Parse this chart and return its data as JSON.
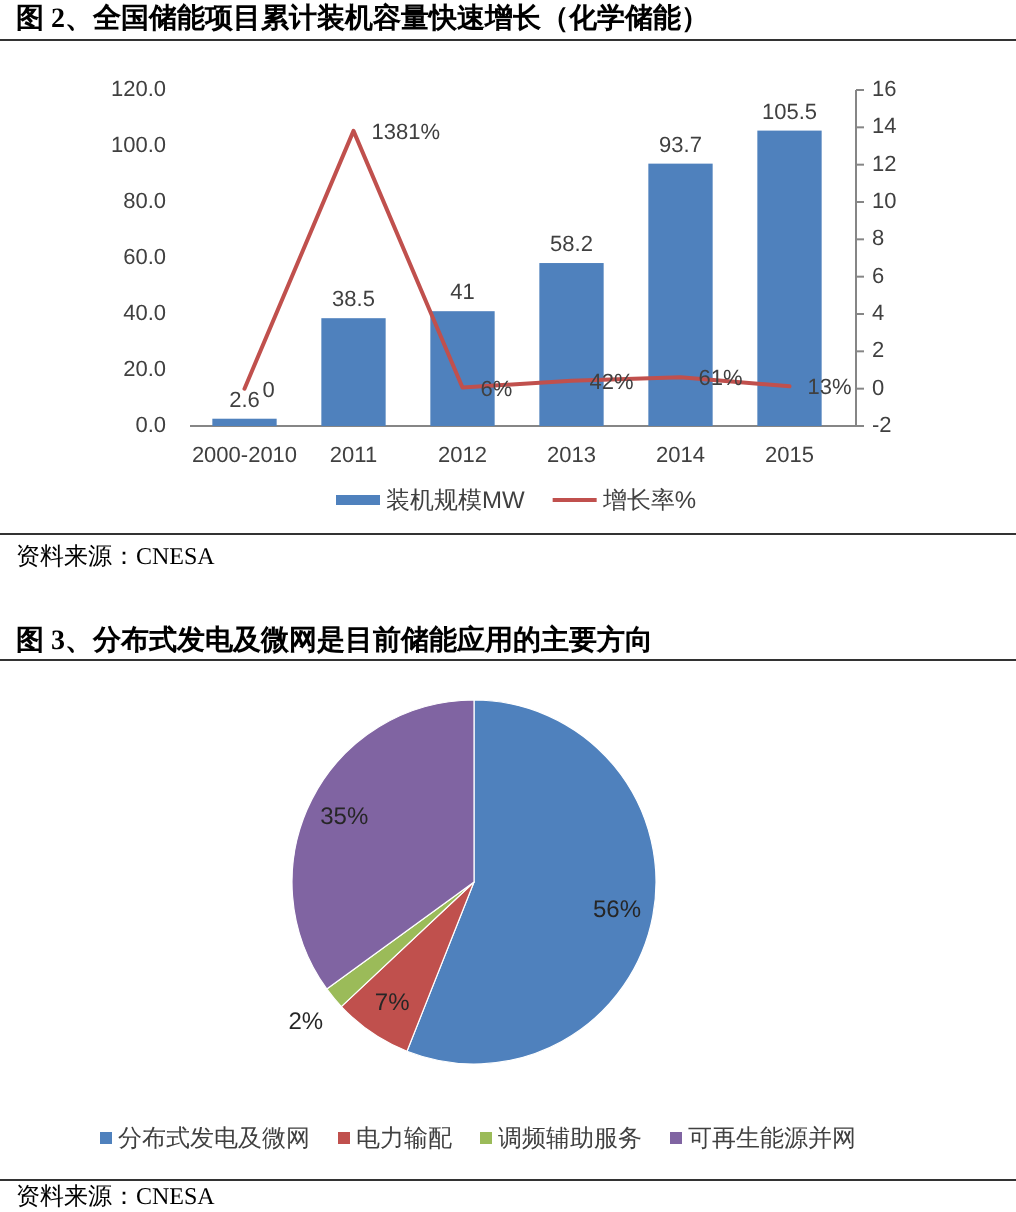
{
  "chart_data": [
    {
      "type": "bar",
      "title": "图 2、全国储能项目累计装机容量快速增长（化学储能）",
      "categories": [
        "2000-2010",
        "2011",
        "2012",
        "2013",
        "2014",
        "2015"
      ],
      "series": [
        {
          "name": "装机规模MW",
          "type": "bar",
          "color": "#4f81bd",
          "values": [
            2.6,
            38.5,
            41,
            58.2,
            93.7,
            105.5
          ],
          "value_labels": [
            "2.6",
            "38.5",
            "41",
            "58.2",
            "93.7",
            "105.5"
          ]
        },
        {
          "name": "增长率%",
          "type": "line",
          "axis": "y2",
          "color": "#c0504d",
          "values": [
            0,
            13.81,
            0.06,
            0.42,
            0.61,
            0.13
          ],
          "value_labels": [
            "0",
            "1381%",
            "6%",
            "42%",
            "61%",
            "13%"
          ]
        }
      ],
      "ylim": [
        0,
        120
      ],
      "yticks": [
        {
          "value": 0,
          "label": "0.0"
        },
        {
          "value": 20,
          "label": "20.0"
        },
        {
          "value": 40,
          "label": "40.0"
        },
        {
          "value": 60,
          "label": "60.0"
        },
        {
          "value": 80,
          "label": "80.0"
        },
        {
          "value": 100,
          "label": "100.0"
        },
        {
          "value": 120,
          "label": "120.0"
        }
      ],
      "y2lim": [
        -2,
        16
      ],
      "y2ticks": [
        -2,
        0,
        2,
        4,
        6,
        8,
        10,
        12,
        14,
        16
      ],
      "legend": "bottom",
      "annotations": [
        "资料来源：CNESA"
      ]
    },
    {
      "type": "pie",
      "title": "图 3、分布式发电及微网是目前储能应用的主要方向",
      "categories": [
        "分布式发电及微网",
        "电力输配",
        "调频辅助服务",
        "可再生能源并网"
      ],
      "values": [
        56,
        7,
        2,
        35
      ],
      "colors": [
        "#4f81bd",
        "#c0504d",
        "#9bbb59",
        "#8064a2"
      ],
      "value_labels": [
        "56%",
        "7%",
        "2%",
        "35%"
      ],
      "legend": "bottom",
      "annotations": [
        "资料来源：CNESA"
      ]
    }
  ]
}
